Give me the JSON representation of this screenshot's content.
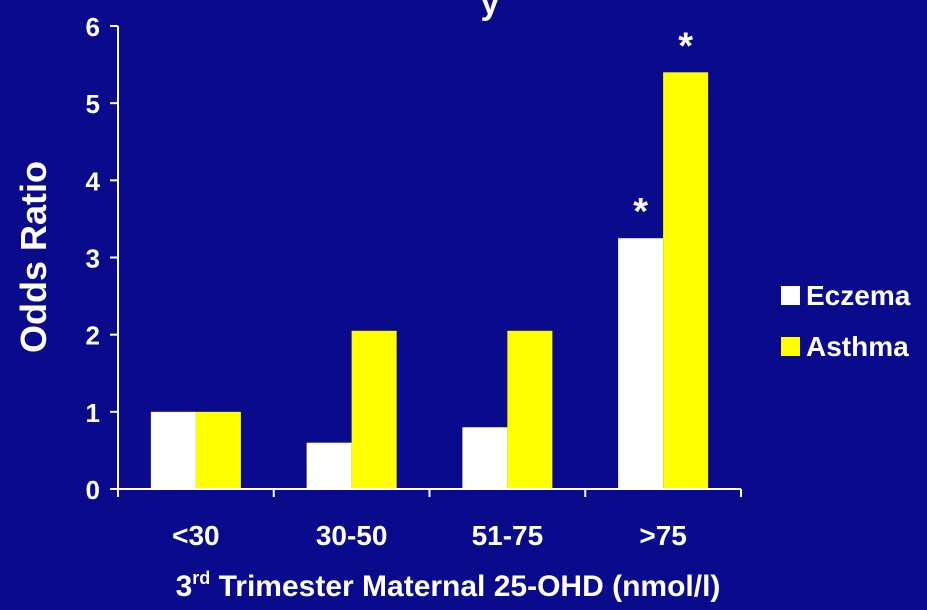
{
  "chart_data": {
    "type": "bar",
    "title_fragment": "y",
    "categories": [
      "<30",
      "30-50",
      "51-75",
      ">75"
    ],
    "series": [
      {
        "name": "Eczema",
        "values": [
          1.0,
          0.6,
          0.8,
          3.25
        ],
        "color": "#ffffff"
      },
      {
        "name": "Asthma",
        "values": [
          1.0,
          2.05,
          2.05,
          5.4
        ],
        "color": "#ffff00"
      }
    ],
    "annotations": [
      {
        "category": ">75",
        "series": "Eczema",
        "text": "*"
      },
      {
        "category": ">75",
        "series": "Asthma",
        "text": "*"
      }
    ],
    "ylabel": "Odds Ratio",
    "xlabel_prefix": "3",
    "xlabel_superscript": "rd",
    "xlabel_rest": " Trimester Maternal 25-OHD (nmol/l)",
    "ylim": [
      0,
      6
    ],
    "yticks": [
      "0",
      "1",
      "2",
      "3",
      "4",
      "5",
      "6"
    ],
    "legend_position": "right",
    "grid": false,
    "colors": {
      "background": "#0a0a8c",
      "axis": "#ffffff",
      "text": "#ffffff"
    }
  }
}
